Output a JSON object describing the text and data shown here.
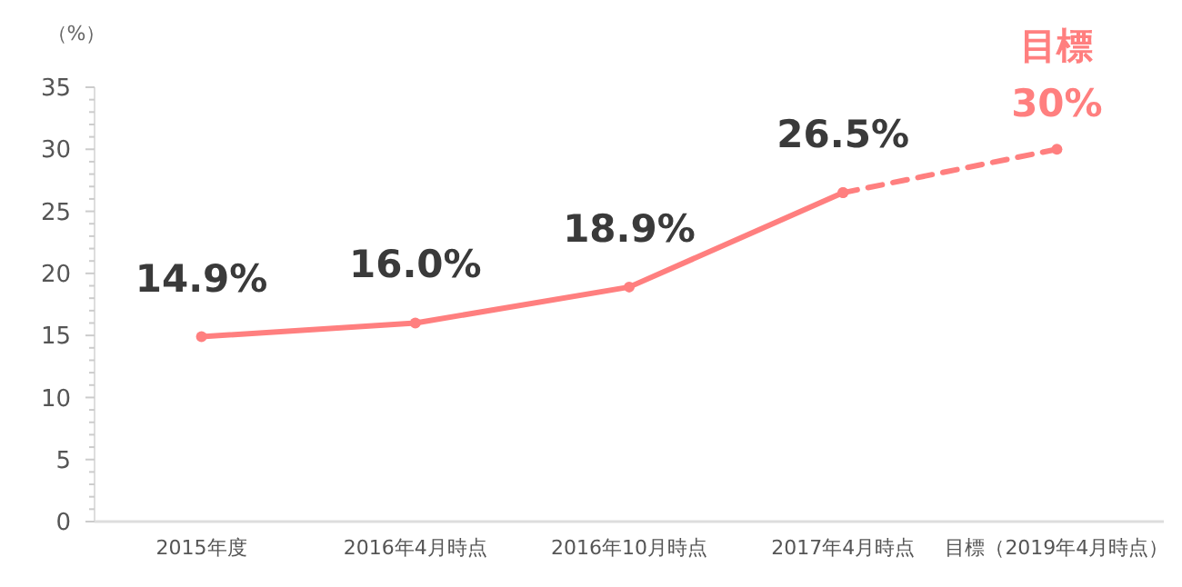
{
  "chart_data": {
    "type": "line",
    "ylabel": "（%）",
    "categories": [
      "2015年度",
      "2016年4月時点",
      "2016年10月時点",
      "2017年4月時点",
      "目標（2019年4月時点）"
    ],
    "ylim": [
      0,
      35
    ],
    "yticks": [
      0,
      {
        "value": 1,
        "label": null
      },
      {
        "value": 2,
        "label": null
      },
      {
        "value": 3,
        "label": null
      },
      {
        "value": 4,
        "label": null
      },
      5,
      {
        "value": 6,
        "label": null
      },
      {
        "value": 7,
        "label": null
      },
      {
        "value": 8,
        "label": null
      },
      {
        "value": 9,
        "label": null
      },
      10,
      {
        "value": 11,
        "label": null
      },
      {
        "value": 12,
        "label": null
      },
      {
        "value": 13,
        "label": null
      },
      {
        "value": 14,
        "label": null
      },
      15,
      {
        "value": 16,
        "label": null
      },
      {
        "value": 17,
        "label": null
      },
      {
        "value": 18,
        "label": null
      },
      {
        "value": 19,
        "label": null
      },
      20,
      {
        "value": 21,
        "label": null
      },
      {
        "value": 22,
        "label": null
      },
      {
        "value": 23,
        "label": null
      },
      {
        "value": 24,
        "label": null
      },
      25,
      {
        "value": 26,
        "label": null
      },
      {
        "value": 27,
        "label": null
      },
      {
        "value": 28,
        "label": null
      },
      {
        "value": 29,
        "label": null
      },
      30,
      {
        "value": 31,
        "label": null
      },
      {
        "value": 32,
        "label": null
      },
      {
        "value": 33,
        "label": null
      },
      {
        "value": 34,
        "label": null
      },
      35
    ],
    "marker": "circle",
    "grid": false,
    "series": [
      {
        "color": "#ff7f7f",
        "line_style": "solid",
        "values": [
          14.9,
          16.0,
          18.9,
          26.5,
          null
        ],
        "value_labels": [
          "14.9%",
          "16.0%",
          "18.9%",
          "26.5%",
          null
        ]
      },
      {
        "color": "#ff7f7f",
        "line_style": "dashed",
        "values": [
          null,
          null,
          null,
          26.5,
          30
        ],
        "value_labels": [
          null,
          null,
          null,
          null,
          "30%"
        ]
      }
    ],
    "annotations": [
      {
        "text": "目標",
        "x": "目標（2019年4月時点）",
        "y": 30
      }
    ]
  }
}
